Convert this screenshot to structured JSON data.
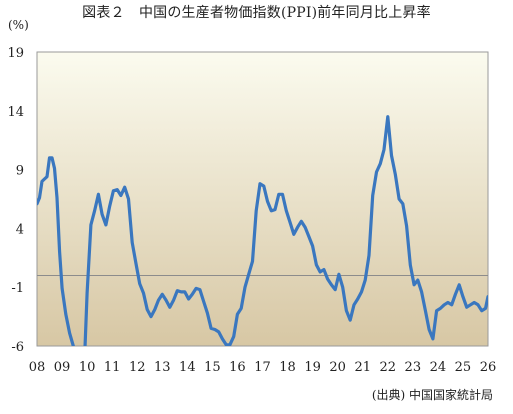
{
  "chart_data": {
    "type": "line",
    "title": "図表２　中国の生産者物価指数(PPI)前年同月比上昇率",
    "unit_label": "(%)",
    "source": "(出典) 中国国家統計局",
    "ylim": [
      -6,
      19
    ],
    "yticks": [
      19,
      14,
      9,
      4,
      -1,
      -6
    ],
    "xlim": [
      2008,
      2026
    ],
    "xticks": [
      "08",
      "09",
      "10",
      "11",
      "12",
      "13",
      "14",
      "15",
      "16",
      "17",
      "18",
      "19",
      "20",
      "21",
      "22",
      "23",
      "24",
      "25",
      "26"
    ],
    "baseline": 0,
    "grid": false,
    "legend": "none",
    "colors": {
      "line": "#3a77bf",
      "plot_top": "#fbfbef",
      "plot_bottom": "#d7c7a4",
      "baseline": "#8c8c8c"
    },
    "series": [
      {
        "x": [
          2008.0,
          2008.1,
          2008.2,
          2008.3,
          2008.4,
          2008.5,
          2008.6,
          2008.7,
          2008.8,
          2008.9,
          2009.0,
          2009.15,
          2009.3,
          2009.45,
          2009.6,
          2009.75,
          2009.9,
          2010.0,
          2010.15,
          2010.3,
          2010.45,
          2010.6,
          2010.75,
          2010.9,
          2011.05,
          2011.2,
          2011.35,
          2011.5,
          2011.65,
          2011.8,
          2011.95,
          2012.1,
          2012.25,
          2012.4,
          2012.55,
          2012.7,
          2012.85,
          2013.0,
          2013.15,
          2013.3,
          2013.45,
          2013.6,
          2013.75,
          2013.9,
          2014.05,
          2014.2,
          2014.35,
          2014.5,
          2014.65,
          2014.8,
          2014.95,
          2015.1,
          2015.25,
          2015.4,
          2015.55,
          2015.7,
          2015.85,
          2016.0,
          2016.15,
          2016.3,
          2016.45,
          2016.6,
          2016.75,
          2016.9,
          2017.05,
          2017.2,
          2017.35,
          2017.5,
          2017.65,
          2017.8,
          2017.95,
          2018.1,
          2018.25,
          2018.4,
          2018.55,
          2018.7,
          2018.85,
          2019.0,
          2019.15,
          2019.3,
          2019.45,
          2019.6,
          2019.75,
          2019.9,
          2020.05,
          2020.2,
          2020.35,
          2020.5,
          2020.65,
          2020.8,
          2020.95,
          2021.1,
          2021.25,
          2021.4,
          2021.55,
          2021.7,
          2021.85,
          2022.0,
          2022.15,
          2022.3,
          2022.45,
          2022.6,
          2022.75,
          2022.9,
          2023.05,
          2023.2,
          2023.35,
          2023.5,
          2023.65,
          2023.8,
          2023.95,
          2024.1,
          2024.25,
          2024.4,
          2024.55,
          2024.7,
          2024.85,
          2025.0,
          2025.15,
          2025.3,
          2025.45,
          2025.6,
          2025.75,
          2025.9,
          2026.0
        ],
        "values": [
          6.1,
          6.6,
          8.0,
          8.2,
          8.4,
          10.0,
          10.0,
          9.1,
          6.6,
          2.0,
          -1.1,
          -3.3,
          -4.9,
          -6.0,
          -8.2,
          -7.9,
          -7.0,
          -1.5,
          4.3,
          5.5,
          6.9,
          5.2,
          4.3,
          5.9,
          7.2,
          7.3,
          6.8,
          7.5,
          6.5,
          2.8,
          1.0,
          -0.7,
          -1.5,
          -2.9,
          -3.5,
          -2.9,
          -2.1,
          -1.6,
          -2.1,
          -2.7,
          -2.1,
          -1.3,
          -1.4,
          -1.4,
          -2.0,
          -1.6,
          -1.1,
          -1.2,
          -2.2,
          -3.2,
          -4.5,
          -4.6,
          -4.8,
          -5.4,
          -5.9,
          -5.9,
          -5.2,
          -3.3,
          -2.8,
          -1.0,
          0.1,
          1.2,
          5.5,
          7.8,
          7.6,
          6.3,
          5.5,
          5.6,
          6.9,
          6.9,
          5.5,
          4.5,
          3.5,
          4.1,
          4.6,
          4.1,
          3.3,
          2.5,
          0.9,
          0.3,
          0.5,
          -0.3,
          -0.8,
          -1.2,
          0.1,
          -1.0,
          -3.0,
          -3.8,
          -2.5,
          -2.0,
          -1.4,
          -0.4,
          1.7,
          6.8,
          8.8,
          9.5,
          10.7,
          13.5,
          10.2,
          8.6,
          6.5,
          6.1,
          4.2,
          0.9,
          -0.8,
          -0.4,
          -1.4,
          -3.0,
          -4.6,
          -5.4,
          -3.0,
          -2.8,
          -2.5,
          -2.3,
          -2.5,
          -1.6,
          -0.8,
          -1.8,
          -2.7,
          -2.5,
          -2.3,
          -2.5,
          -3.0,
          -2.8,
          -1.8
        ]
      }
    ]
  }
}
